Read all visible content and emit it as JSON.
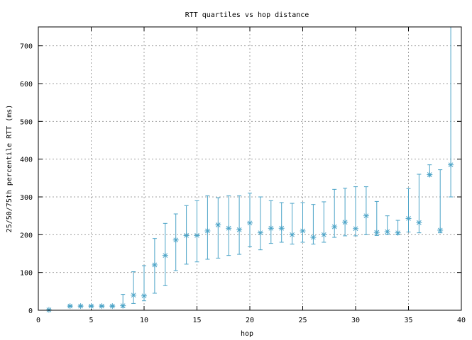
{
  "chart_data": {
    "type": "scatter",
    "title": "RTT quartiles vs hop distance",
    "xlabel": "hop",
    "ylabel": "25/50/75th percentile RTT (ms)",
    "xlim": [
      0,
      40
    ],
    "ylim": [
      0,
      750
    ],
    "xticks": [
      0,
      5,
      10,
      15,
      20,
      25,
      30,
      35,
      40
    ],
    "yticks": [
      0,
      100,
      200,
      300,
      400,
      500,
      600,
      700
    ],
    "grid": true,
    "legend": "none",
    "series_color": "#4ba3c7",
    "series": [
      {
        "marker": "asterisk",
        "errorbars": "p25-p75",
        "points": [
          {
            "x": 1,
            "p25": 0,
            "median": 1,
            "p75": 2
          },
          {
            "x": 3,
            "p25": 10,
            "median": 11,
            "p75": 12
          },
          {
            "x": 4,
            "p25": 10,
            "median": 11,
            "p75": 12
          },
          {
            "x": 5,
            "p25": 10,
            "median": 11,
            "p75": 12
          },
          {
            "x": 6,
            "p25": 10,
            "median": 11,
            "p75": 12
          },
          {
            "x": 7,
            "p25": 10,
            "median": 11,
            "p75": 12
          },
          {
            "x": 8,
            "p25": 8,
            "median": 12,
            "p75": 42
          },
          {
            "x": 9,
            "p25": 18,
            "median": 40,
            "p75": 102
          },
          {
            "x": 10,
            "p25": 25,
            "median": 38,
            "p75": 118
          },
          {
            "x": 11,
            "p25": 45,
            "median": 120,
            "p75": 190
          },
          {
            "x": 12,
            "p25": 65,
            "median": 145,
            "p75": 230
          },
          {
            "x": 13,
            "p25": 105,
            "median": 186,
            "p75": 255
          },
          {
            "x": 14,
            "p25": 122,
            "median": 198,
            "p75": 277
          },
          {
            "x": 15,
            "p25": 128,
            "median": 198,
            "p75": 290
          },
          {
            "x": 16,
            "p25": 135,
            "median": 210,
            "p75": 303
          },
          {
            "x": 17,
            "p25": 138,
            "median": 226,
            "p75": 298
          },
          {
            "x": 18,
            "p25": 145,
            "median": 217,
            "p75": 303
          },
          {
            "x": 19,
            "p25": 148,
            "median": 213,
            "p75": 303
          },
          {
            "x": 20,
            "p25": 168,
            "median": 231,
            "p75": 310
          },
          {
            "x": 21,
            "p25": 160,
            "median": 205,
            "p75": 300
          },
          {
            "x": 22,
            "p25": 177,
            "median": 217,
            "p75": 290
          },
          {
            "x": 23,
            "p25": 180,
            "median": 217,
            "p75": 285
          },
          {
            "x": 24,
            "p25": 175,
            "median": 200,
            "p75": 283
          },
          {
            "x": 25,
            "p25": 180,
            "median": 210,
            "p75": 285
          },
          {
            "x": 26,
            "p25": 175,
            "median": 193,
            "p75": 280
          },
          {
            "x": 27,
            "p25": 180,
            "median": 200,
            "p75": 287
          },
          {
            "x": 28,
            "p25": 193,
            "median": 221,
            "p75": 320
          },
          {
            "x": 29,
            "p25": 197,
            "median": 233,
            "p75": 323
          },
          {
            "x": 30,
            "p25": 197,
            "median": 216,
            "p75": 327
          },
          {
            "x": 31,
            "p25": 200,
            "median": 250,
            "p75": 327
          },
          {
            "x": 32,
            "p25": 198,
            "median": 206,
            "p75": 288
          },
          {
            "x": 33,
            "p25": 200,
            "median": 208,
            "p75": 250
          },
          {
            "x": 34,
            "p25": 200,
            "median": 205,
            "p75": 238
          },
          {
            "x": 35,
            "p25": 207,
            "median": 243,
            "p75": 322
          },
          {
            "x": 36,
            "p25": 205,
            "median": 232,
            "p75": 360
          },
          {
            "x": 37,
            "p25": 355,
            "median": 359,
            "p75": 385
          },
          {
            "x": 38,
            "p25": 205,
            "median": 212,
            "p75": 372
          },
          {
            "x": 39,
            "p25": 300,
            "median": 385,
            "p75": 750
          }
        ]
      }
    ]
  }
}
